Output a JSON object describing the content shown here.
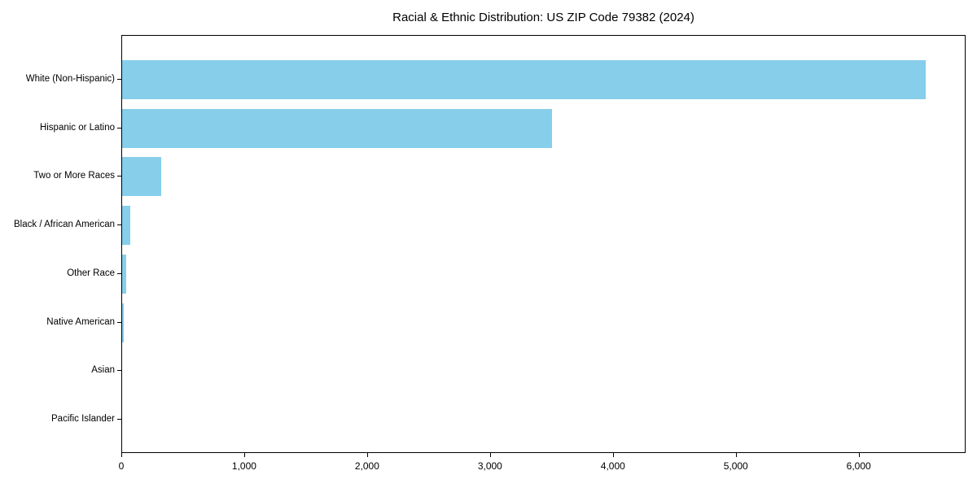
{
  "title": "Racial & Ethnic Distribution: US ZIP Code 79382 (2024)",
  "chart_data": {
    "type": "bar",
    "orientation": "horizontal",
    "title": "Racial & Ethnic Distribution: US ZIP Code 79382 (2024)",
    "xlabel": "",
    "ylabel": "",
    "categories": [
      "White (Non-Hispanic)",
      "Hispanic or Latino",
      "Two or More Races",
      "Black / African American",
      "Other Race",
      "Native American",
      "Asian",
      "Pacific Islander"
    ],
    "values": [
      6540,
      3500,
      320,
      65,
      30,
      15,
      0,
      0
    ],
    "xlim": [
      0,
      6870
    ],
    "xticks": [
      0,
      1000,
      2000,
      3000,
      4000,
      5000,
      6000
    ],
    "xtick_labels": [
      "0",
      "1,000",
      "2,000",
      "3,000",
      "4,000",
      "5,000",
      "6,000"
    ],
    "grid": false,
    "legend": null,
    "bar_color": "#87CEEB",
    "axis_color": "#000000",
    "background_color": "#FFFFFF",
    "text_color": "#000000"
  }
}
